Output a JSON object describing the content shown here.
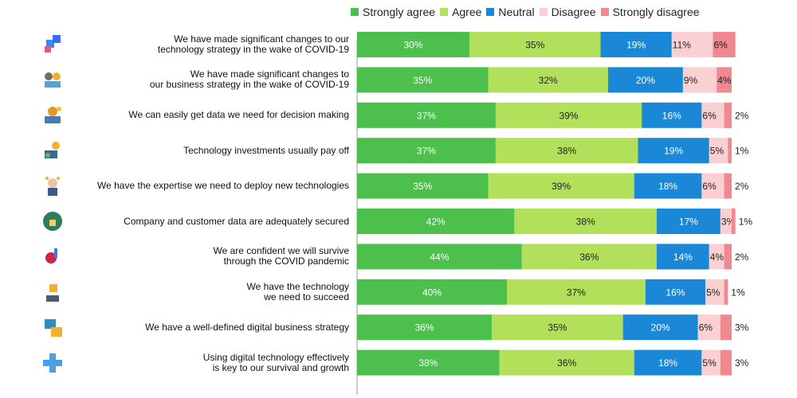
{
  "legend": [
    {
      "label": "Strongly agree",
      "color": "#4dbf4d"
    },
    {
      "label": "Agree",
      "color": "#b3e05a"
    },
    {
      "label": "Neutral",
      "color": "#1a88d6"
    },
    {
      "label": "Disagree",
      "color": "#fbd0d3"
    },
    {
      "label": "Strongly disagree",
      "color": "#f08891"
    }
  ],
  "chart_data": {
    "type": "bar",
    "orientation": "horizontal",
    "stacked": true,
    "legend_position": "top",
    "categories": [
      "We have made significant changes to our\ntechnology strategy in the wake of COVID-19",
      "We have made significant changes to\nour business strategy in the wake of COVID-19",
      "We can easily get data we need for decision making",
      "Technology investments usually pay off",
      "We have the expertise we need to deploy new technologies",
      "Company and customer data are adequately secured",
      "We are confident we will survive\nthrough the COVID pandemic",
      "We have the technology\nwe need to succeed",
      "We have a well-defined digital business strategy",
      "Using digital technology effectively\nis key to our survival and growth"
    ],
    "icons": [
      "app-tiles-icon",
      "people-gears-icon",
      "team-gear-icon",
      "investment-person-icon",
      "expert-person-icon",
      "shield-lock-icon",
      "virus-vaccine-icon",
      "trophy-hand-icon",
      "digital-strategy-icon",
      "digital-cross-icon"
    ],
    "series": [
      {
        "name": "Strongly agree",
        "values": [
          30,
          35,
          37,
          37,
          35,
          42,
          44,
          40,
          36,
          38
        ]
      },
      {
        "name": "Agree",
        "values": [
          35,
          32,
          39,
          38,
          39,
          38,
          36,
          37,
          35,
          36
        ]
      },
      {
        "name": "Neutral",
        "values": [
          19,
          20,
          16,
          19,
          18,
          17,
          14,
          16,
          20,
          18
        ]
      },
      {
        "name": "Disagree",
        "values": [
          11,
          9,
          6,
          5,
          6,
          3,
          4,
          5,
          6,
          5
        ]
      },
      {
        "name": "Strongly disagree",
        "values": [
          6,
          4,
          2,
          1,
          2,
          1,
          2,
          1,
          3,
          3
        ]
      }
    ],
    "data_labels": [
      [
        "30%",
        "35%",
        "19%",
        "11%",
        "6%"
      ],
      [
        "35%",
        "32%",
        "20%",
        "9%",
        "4%"
      ],
      [
        "37%",
        "39%",
        "16%",
        "6%",
        "2%"
      ],
      [
        "37%",
        "38%",
        "19%",
        "5%",
        "1%"
      ],
      [
        "35%",
        "39%",
        "18%",
        "6%",
        "2%"
      ],
      [
        "42%",
        "38%",
        "17%",
        "3%",
        "1%"
      ],
      [
        "44%",
        "36%",
        "14%",
        "4%",
        "2%"
      ],
      [
        "40%",
        "37%",
        "16%",
        "5%",
        "1%"
      ],
      [
        "36%",
        "35%",
        "20%",
        "6%",
        "3%"
      ],
      [
        "38%",
        "36%",
        "18%",
        "5%",
        "3%"
      ]
    ],
    "label_colors": [
      "#ffffff",
      "#222222",
      "#ffffff",
      "#222222",
      "#222222"
    ],
    "xlim": [
      0,
      100
    ],
    "grid": false
  }
}
